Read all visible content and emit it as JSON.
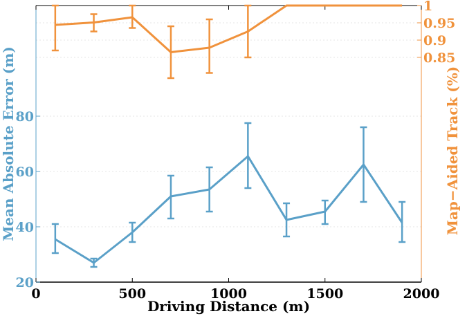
{
  "chart_data": {
    "type": "line",
    "xlabel": "Driving Distance (m)",
    "ylabel_left": "Mean Absolute Error (m)",
    "ylabel_right": "Map−Aided Track (%)",
    "xlim": [
      0,
      2000
    ],
    "ylim_left": [
      20,
      120
    ],
    "ylim_right": [
      0.2,
      1.0
    ],
    "x_ticks": [
      0,
      500,
      1000,
      1500,
      2000
    ],
    "left_ticks": [
      20,
      40,
      60,
      80
    ],
    "right_ticks": [
      0.85,
      0.9,
      0.95,
      1
    ],
    "right_tick_labels": [
      "0.85",
      "0.9",
      "0.95",
      "1"
    ],
    "grid": true,
    "colors": {
      "left": "#5aa0c8",
      "right": "#f0923c",
      "axis": "#000000"
    },
    "series": [
      {
        "axis": "left",
        "color": "#5aa0c8",
        "x": [
          100,
          300,
          500,
          700,
          900,
          1100,
          1300,
          1500,
          1700,
          1900
        ],
        "y": [
          35.5,
          27,
          38,
          51,
          53.5,
          65.5,
          42.5,
          45.5,
          62.5,
          41.5
        ],
        "err_low": [
          30.5,
          25.5,
          34.5,
          43,
          45.5,
          54,
          36.5,
          41,
          49,
          34.5
        ],
        "err_high": [
          41,
          28.5,
          41.5,
          58.5,
          61.5,
          77.5,
          48.5,
          49.5,
          76,
          49
        ]
      },
      {
        "axis": "right",
        "color": "#f0923c",
        "x": [
          100,
          300,
          500,
          700,
          900,
          1100,
          1300,
          1500,
          1700,
          1900
        ],
        "y": [
          0.944,
          0.951,
          0.966,
          0.865,
          0.878,
          0.925,
          1.0,
          1.0,
          1.0,
          1.0
        ],
        "err_low": [
          0.87,
          0.925,
          0.935,
          0.79,
          0.805,
          0.85,
          1.0,
          1.0,
          1.0,
          1.0
        ],
        "err_high": [
          1.0,
          0.975,
          1.0,
          0.94,
          0.96,
          1.0,
          1.0,
          1.0,
          1.0,
          1.0
        ]
      }
    ]
  }
}
